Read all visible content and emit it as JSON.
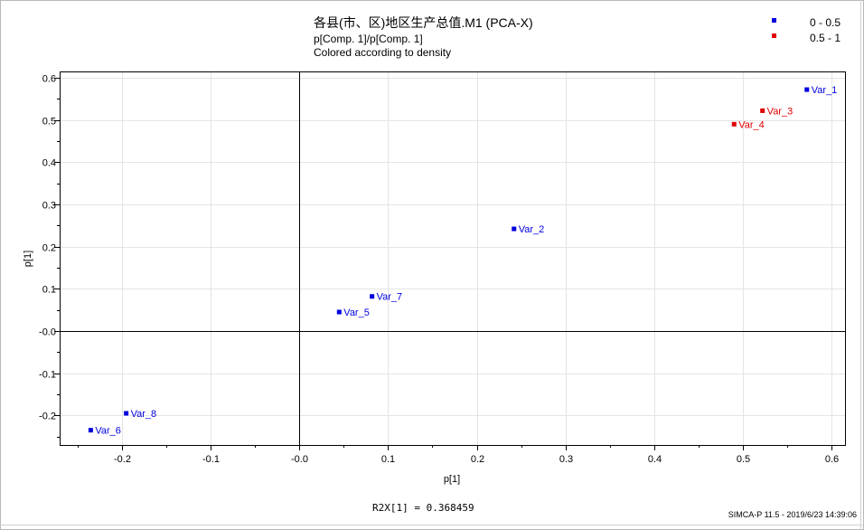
{
  "chart": {
    "title": "各县(市、区)地区生产总值.M1 (PCA-X)",
    "subtitle": "p[Comp. 1]/p[Comp. 1]",
    "subtitle2": "Colored according to density",
    "r2x_text": "R2X[1] = 0.368459",
    "footer": "SIMCA-P 11.5 - 2019/6/23 14:39:06"
  },
  "legend": [
    {
      "label": "0 - 0.5",
      "color": "#0000e0"
    },
    {
      "label": "0.5 - 1",
      "color": "#e00000"
    }
  ],
  "chart_data": {
    "type": "scatter",
    "title": "各县(市、区)地区生产总值.M1 (PCA-X)",
    "xlabel": "p[1]",
    "ylabel": "p[1]",
    "xlim": [
      -0.27,
      0.615
    ],
    "ylim": [
      -0.27,
      0.615
    ],
    "xticks": [
      -0.2,
      -0.1,
      -0.0,
      0.1,
      0.2,
      0.3,
      0.4,
      0.5,
      0.6
    ],
    "xtick_labels": [
      "-0.2",
      "-0.1",
      "-0.0",
      "0.1",
      "0.2",
      "0.3",
      "0.4",
      "0.5",
      "0.6"
    ],
    "yticks": [
      0.6,
      0.5,
      0.4,
      0.3,
      0.2,
      0.1,
      -0.0,
      -0.1,
      -0.2
    ],
    "ytick_labels": [
      "0.6",
      "0.5",
      "0.4",
      "0.3",
      "0.2",
      "0.1",
      "-0.0",
      "-0.1",
      "-0.2"
    ],
    "grid": true,
    "legend_position": "top-right",
    "points": [
      {
        "label": "Var_1",
        "x": 0.572,
        "y": 0.572,
        "group": "0 - 0.5",
        "color": "#0000e0"
      },
      {
        "label": "Var_3",
        "x": 0.522,
        "y": 0.522,
        "group": "0.5 - 1",
        "color": "#e00000"
      },
      {
        "label": "Var_4",
        "x": 0.49,
        "y": 0.49,
        "group": "0.5 - 1",
        "color": "#e00000"
      },
      {
        "label": "Var_2",
        "x": 0.242,
        "y": 0.242,
        "group": "0 - 0.5",
        "color": "#0000e0"
      },
      {
        "label": "Var_7",
        "x": 0.082,
        "y": 0.082,
        "group": "0 - 0.5",
        "color": "#0000e0"
      },
      {
        "label": "Var_5",
        "x": 0.045,
        "y": 0.045,
        "group": "0 - 0.5",
        "color": "#0000e0"
      },
      {
        "label": "Var_8",
        "x": -0.195,
        "y": -0.195,
        "group": "0 - 0.5",
        "color": "#0000e0"
      },
      {
        "label": "Var_6",
        "x": -0.235,
        "y": -0.235,
        "group": "0 - 0.5",
        "color": "#0000e0"
      }
    ]
  }
}
